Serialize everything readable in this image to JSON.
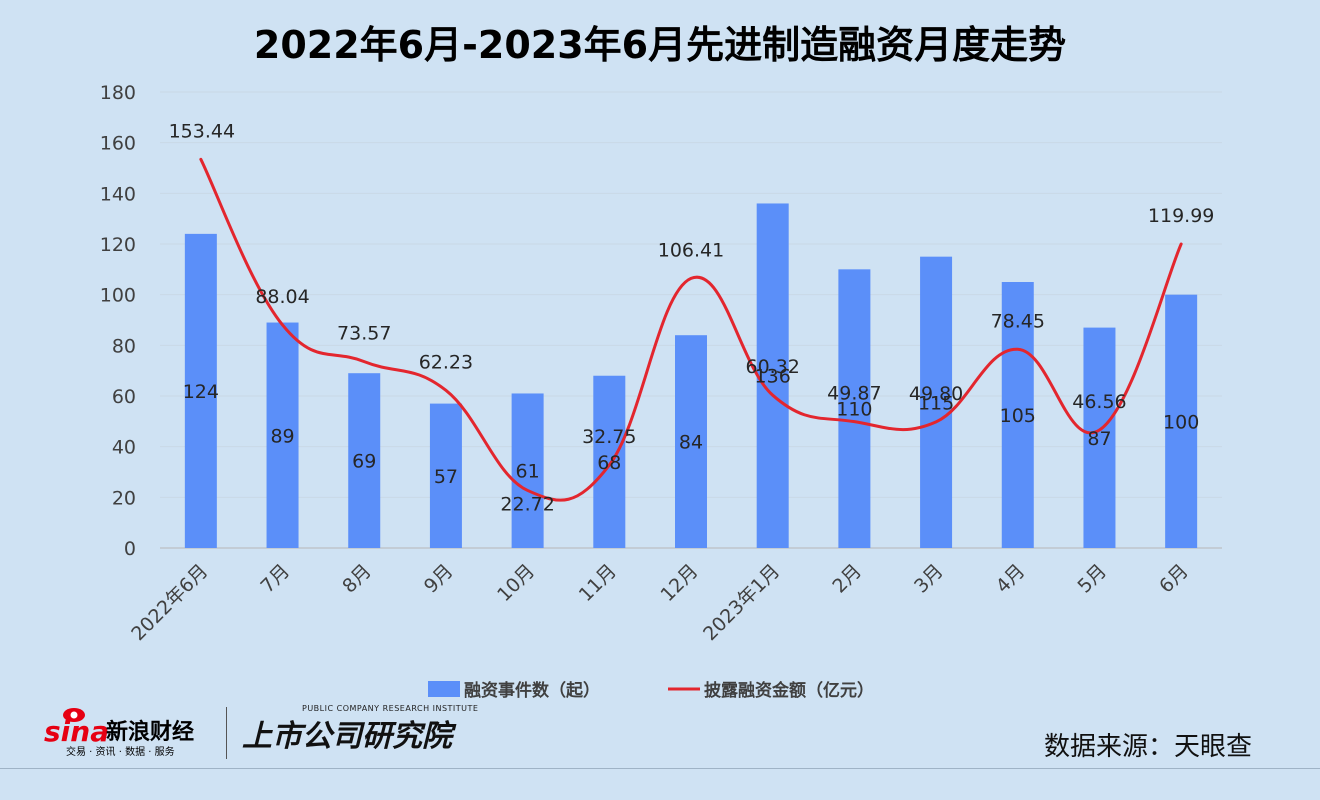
{
  "chart_data": {
    "type": "bar+line",
    "title": "2022年6月-2023年6月先进制造融资月度走势",
    "categories": [
      "2022年6月",
      "7月",
      "8月",
      "9月",
      "10月",
      "11月",
      "12月",
      "2023年1月",
      "2月",
      "3月",
      "4月",
      "5月",
      "6月"
    ],
    "series": [
      {
        "name": "融资事件数（起）",
        "type": "bar",
        "color": "#5b8ff9",
        "values": [
          124,
          89,
          69,
          57,
          61,
          68,
          84,
          136,
          110,
          115,
          105,
          87,
          100
        ],
        "labels": [
          "124",
          "89",
          "69",
          "57",
          "61",
          "68",
          "84",
          "136",
          "110",
          "115",
          "105",
          "87",
          "100"
        ]
      },
      {
        "name": "披露融资金额（亿元）",
        "type": "line",
        "color": "#e3262e",
        "smooth": true,
        "values": [
          153.44,
          88.04,
          73.57,
          62.23,
          22.72,
          32.75,
          106.41,
          60.32,
          49.87,
          49.8,
          78.45,
          46.56,
          119.99
        ],
        "labels": [
          "153.44",
          "88.04",
          "73.57",
          "62.23",
          "22.72",
          "32.75",
          "106.41",
          "60.32",
          "49.87",
          "49.80",
          "78.45",
          "46.56",
          "119.99"
        ]
      }
    ],
    "ylim": [
      0,
      180
    ],
    "yticks": [
      0,
      20,
      40,
      60,
      80,
      100,
      120,
      140,
      160,
      180
    ],
    "grid": true,
    "legend": "bottom"
  },
  "footer": {
    "source": "数据来源：天眼查",
    "sina_word": "sina",
    "sina_cn": "新浪财经",
    "sina_sub": "交易 · 资讯 · 数据 · 服务",
    "institute_cn": "上市公司研究院",
    "institute_en": "PUBLIC COMPANY RESEARCH INSTITUTE"
  }
}
